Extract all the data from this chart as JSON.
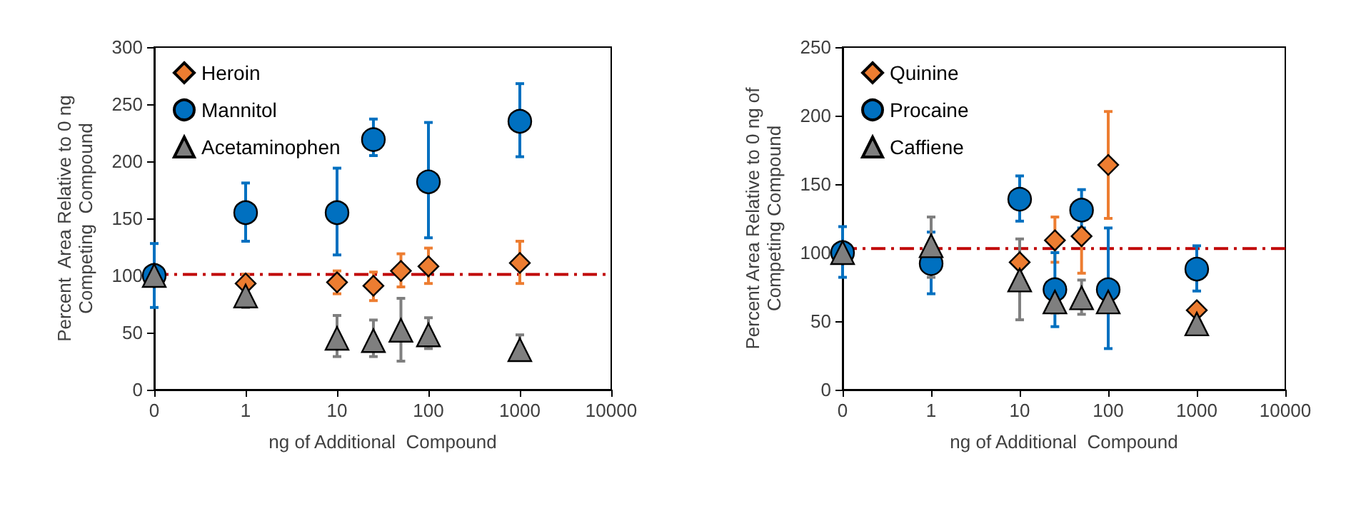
{
  "chart_data": [
    {
      "type": "scatter",
      "xlabel": "ng of Additional  Compound",
      "ylabel": "Percent  Area Relative to 0 ng\nCompeting  Compound",
      "log": "x",
      "xlim": [
        0.1,
        10000
      ],
      "xticks": [
        {
          "value": 0.1,
          "label": "0"
        },
        1,
        10,
        100,
        1000,
        10000
      ],
      "ylim": [
        0,
        300
      ],
      "yticks": [
        0,
        50,
        100,
        150,
        200,
        250,
        300
      ],
      "grid": false,
      "legend": "top left",
      "ref_lines": [
        {
          "axis": "y",
          "value": 101,
          "color": "#c00000",
          "line_style": "dashed"
        }
      ],
      "series": [
        {
          "name": "Heroin",
          "color": "#ed7d31",
          "marker": "diamond",
          "x": [
            1,
            10,
            25,
            50,
            100,
            1000
          ],
          "values": [
            93,
            94,
            91,
            104,
            108,
            111
          ],
          "errors": [
            [
              85,
              101
            ],
            [
              84,
              104
            ],
            [
              78,
              103
            ],
            [
              90,
              119
            ],
            [
              93,
              124
            ],
            [
              93,
              130
            ]
          ]
        },
        {
          "name": "Mannitol",
          "color": "#0070c0",
          "marker": "circle",
          "x": [
            0.1,
            1,
            10,
            25,
            100,
            1000
          ],
          "values": [
            100,
            155,
            155,
            219,
            182,
            235
          ],
          "errors": [
            [
              72,
              128
            ],
            [
              130,
              181
            ],
            [
              118,
              194
            ],
            [
              205,
              237
            ],
            [
              133,
              234
            ],
            [
              204,
              268
            ]
          ]
        },
        {
          "name": "Acetaminophen",
          "color": "#7f7f7f",
          "marker": "triangle",
          "x": [
            0.1,
            1,
            10,
            25,
            50,
            100,
            1000
          ],
          "values": [
            100,
            82,
            45,
            43,
            52,
            48,
            35
          ],
          "errors": [
            null,
            [
              72,
              92
            ],
            [
              29,
              65
            ],
            [
              29,
              61
            ],
            [
              25,
              80
            ],
            [
              36,
              63
            ],
            [
              27,
              48
            ]
          ]
        }
      ]
    },
    {
      "type": "scatter",
      "xlabel": "ng of Additional  Compound",
      "ylabel": "Percent Area Relative to 0 ng of\nCompeting Compound",
      "log": "x",
      "xlim": [
        0.1,
        10000
      ],
      "xticks": [
        {
          "value": 0.1,
          "label": "0"
        },
        1,
        10,
        100,
        1000,
        10000
      ],
      "ylim": [
        0,
        250
      ],
      "yticks": [
        0,
        50,
        100,
        150,
        200,
        250
      ],
      "grid": false,
      "legend": "top left",
      "ref_lines": [
        {
          "axis": "y",
          "value": 103,
          "color": "#c00000",
          "line_style": "dashed"
        }
      ],
      "series": [
        {
          "name": "Quinine",
          "color": "#ed7d31",
          "marker": "diamond",
          "x": [
            10,
            25,
            50,
            100,
            1000
          ],
          "values": [
            93,
            109,
            112,
            164,
            58
          ],
          "errors": [
            null,
            [
              93,
              126
            ],
            [
              85,
              112
            ],
            [
              125,
              203
            ],
            null
          ]
        },
        {
          "name": "Procaine",
          "color": "#0070c0",
          "marker": "circle",
          "x": [
            0.1,
            1,
            10,
            25,
            50,
            100,
            1000
          ],
          "values": [
            100,
            92,
            139,
            73,
            131,
            73,
            88
          ],
          "errors": [
            [
              82,
              119
            ],
            [
              70,
              115
            ],
            [
              123,
              156
            ],
            [
              46,
              100
            ],
            [
              118,
              146
            ],
            [
              30,
              118
            ],
            [
              72,
              105
            ]
          ]
        },
        {
          "name": "Caffiene",
          "color": "#7f7f7f",
          "marker": "triangle",
          "x": [
            0.1,
            1,
            10,
            25,
            50,
            100,
            1000
          ],
          "values": [
            100,
            105,
            80,
            64,
            67,
            64,
            48
          ],
          "errors": [
            null,
            [
              82,
              126
            ],
            [
              51,
              110
            ],
            [
              56,
              72
            ],
            [
              55,
              80
            ],
            null,
            null
          ]
        }
      ]
    }
  ]
}
